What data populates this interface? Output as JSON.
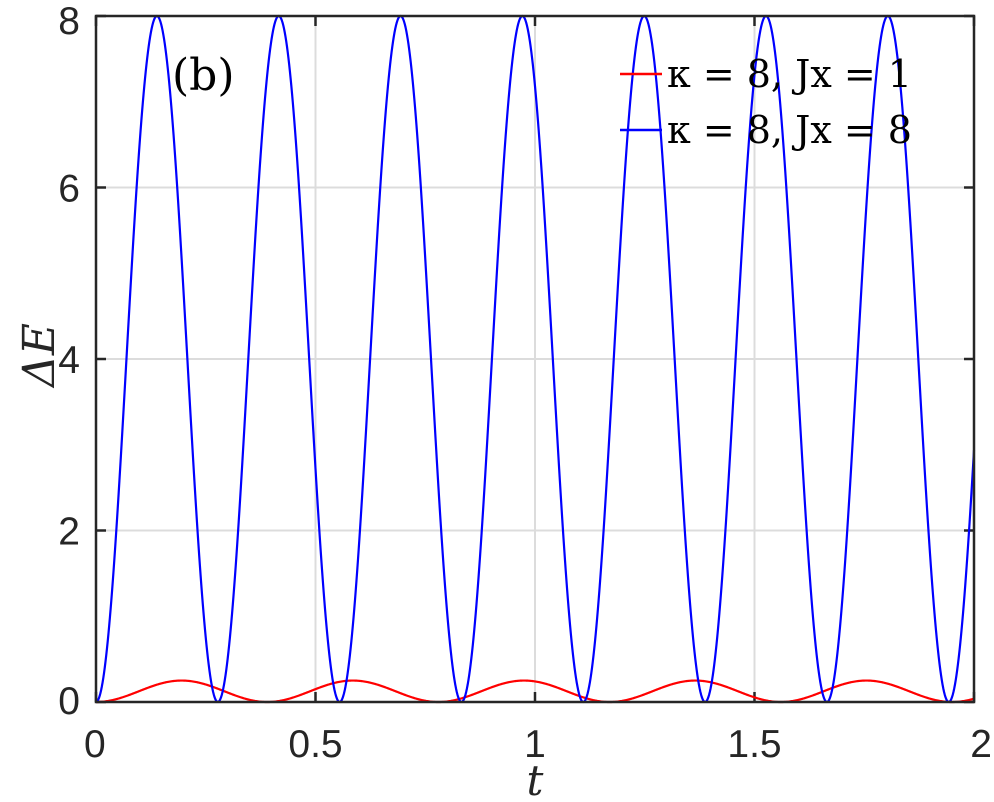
{
  "chart_data": {
    "type": "line",
    "panel_label": "(b)",
    "xlabel": "t",
    "ylabel": "ΔE",
    "xlim": [
      0,
      2
    ],
    "ylim": [
      0,
      8
    ],
    "xticks": [
      0,
      0.5,
      1,
      1.5,
      2
    ],
    "xtick_labels": [
      "0",
      "0.5",
      "1",
      "1.5",
      "2"
    ],
    "yticks": [
      0,
      2,
      4,
      6,
      8
    ],
    "ytick_labels": [
      "0",
      "2",
      "4",
      "6",
      "8"
    ],
    "grid": true,
    "legend_position": "top-right",
    "series": [
      {
        "name": "κ = 8,  Jx = 1",
        "color": "#ff0000",
        "amplitude": 0.25,
        "period": 0.39,
        "sampled_points": [
          [
            0,
            0
          ],
          [
            0.1,
            0.125
          ],
          [
            0.195,
            0.25
          ],
          [
            0.29,
            0.125
          ],
          [
            0.39,
            0
          ],
          [
            0.585,
            0.25
          ],
          [
            0.78,
            0
          ],
          [
            0.975,
            0.25
          ],
          [
            1.17,
            0
          ],
          [
            1.365,
            0.25
          ],
          [
            1.56,
            0
          ],
          [
            1.755,
            0.25
          ],
          [
            1.95,
            0
          ],
          [
            2.0,
            0.004
          ]
        ]
      },
      {
        "name": "κ = 8,  Jx = 8",
        "color": "#0000ff",
        "amplitude": 8,
        "period": 0.2775,
        "sampled_points": [
          [
            0,
            0
          ],
          [
            0.069,
            4
          ],
          [
            0.139,
            8
          ],
          [
            0.208,
            4
          ],
          [
            0.2775,
            0
          ],
          [
            0.416,
            8
          ],
          [
            0.555,
            0
          ],
          [
            0.694,
            8
          ],
          [
            0.8325,
            0
          ],
          [
            0.971,
            8
          ],
          [
            1.11,
            0
          ],
          [
            1.249,
            8
          ],
          [
            1.3875,
            0
          ],
          [
            1.526,
            8
          ],
          [
            1.665,
            0
          ],
          [
            1.804,
            8
          ],
          [
            1.9425,
            0
          ],
          [
            2.0,
            2.8
          ]
        ]
      }
    ]
  }
}
